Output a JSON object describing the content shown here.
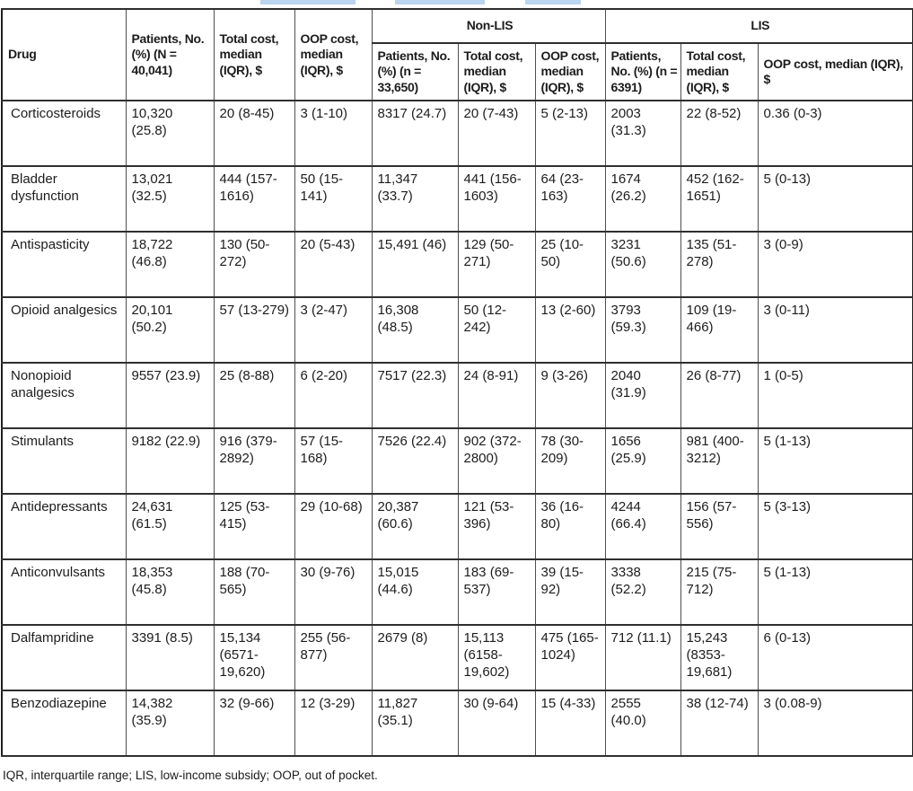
{
  "artifact_color": "#b9d5ef",
  "table": {
    "header": {
      "drug": "Drug",
      "overall": [
        "Patients, No. (%) (N = 40,041)",
        "Total cost, median (IQR), $",
        "OOP cost, median (IQR), $"
      ],
      "groups": [
        {
          "label": "Non-LIS",
          "cols": [
            "Patients, No. (%) (n = 33,650)",
            "Total cost, median (IQR), $",
            "OOP cost, median (IQR), $"
          ]
        },
        {
          "label": "LIS",
          "cols": [
            "Patients, No. (%) (n = 6391)",
            "Total cost, median (IQR), $",
            "OOP cost, median (IQR), $"
          ]
        }
      ]
    },
    "rows": [
      {
        "drug": "Corticosteroids",
        "values": [
          "10,320 (25.8)",
          "20 (8-45)",
          "3 (1-10)",
          "8317 (24.7)",
          "20 (7-43)",
          "5 (2-13)",
          "2003 (31.3)",
          "22 (8-52)",
          "0.36 (0-3)"
        ]
      },
      {
        "drug": "Bladder dysfunction",
        "values": [
          "13,021 (32.5)",
          "444 (157-1616)",
          "50 (15-141)",
          "11,347 (33.7)",
          "441 (156-1603)",
          "64 (23-163)",
          "1674 (26.2)",
          "452 (162-1651)",
          "5 (0-13)"
        ]
      },
      {
        "drug": "Antispasticity",
        "values": [
          "18,722 (46.8)",
          "130 (50-272)",
          "20 (5-43)",
          "15,491 (46)",
          "129 (50-271)",
          "25 (10-50)",
          "3231 (50.6)",
          "135 (51-278)",
          "3 (0-9)"
        ]
      },
      {
        "drug": "Opioid analgesics",
        "values": [
          "20,101 (50.2)",
          "57 (13-279)",
          "3 (2-47)",
          "16,308 (48.5)",
          "50 (12-242)",
          "13 (2-60)",
          "3793 (59.3)",
          "109 (19-466)",
          "3 (0-11)"
        ]
      },
      {
        "drug": "Nonopioid analgesics",
        "values": [
          "9557 (23.9)",
          "25 (8-88)",
          "6 (2-20)",
          "7517 (22.3)",
          "24 (8-91)",
          "9 (3-26)",
          "2040 (31.9)",
          "26 (8-77)",
          "1 (0-5)"
        ]
      },
      {
        "drug": "Stimulants",
        "values": [
          "9182 (22.9)",
          "916 (379-2892)",
          "57 (15-168)",
          "7526 (22.4)",
          "902 (372-2800)",
          "78 (30-209)",
          "1656 (25.9)",
          "981 (400-3212)",
          "5 (1-13)"
        ]
      },
      {
        "drug": "Antidepressants",
        "values": [
          "24,631 (61.5)",
          "125 (53-415)",
          "29 (10-68)",
          "20,387 (60.6)",
          "121 (53-396)",
          "36 (16-80)",
          "4244 (66.4)",
          "156 (57-556)",
          "5 (3-13)"
        ]
      },
      {
        "drug": "Anticonvulsants",
        "values": [
          "18,353 (45.8)",
          "188 (70-565)",
          "30 (9-76)",
          "15,015 (44.6)",
          "183 (69-537)",
          "39 (15-92)",
          "3338 (52.2)",
          "215 (75-712)",
          "5 (1-13)"
        ]
      },
      {
        "drug": "Dalfampridine",
        "values": [
          "3391 (8.5)",
          "15,134 (6571-19,620)",
          "255 (56-877)",
          "2679 (8)",
          "15,113 (6158-19,602)",
          "475 (165-1024)",
          "712 (11.1)",
          "15,243 (8353-19,681)",
          "6 (0-13)"
        ]
      },
      {
        "drug": "Benzodiazepine",
        "values": [
          "14,382 (35.9)",
          "32 (9-66)",
          "12 (3-29)",
          "11,827 (35.1)",
          "30 (9-64)",
          "15 (4-33)",
          "2555 (40.0)",
          "38 (12-74)",
          "3 (0.08-9)"
        ]
      }
    ],
    "footnote": "IQR, interquartile range; LIS, low-income subsidy; OOP, out of pocket."
  }
}
